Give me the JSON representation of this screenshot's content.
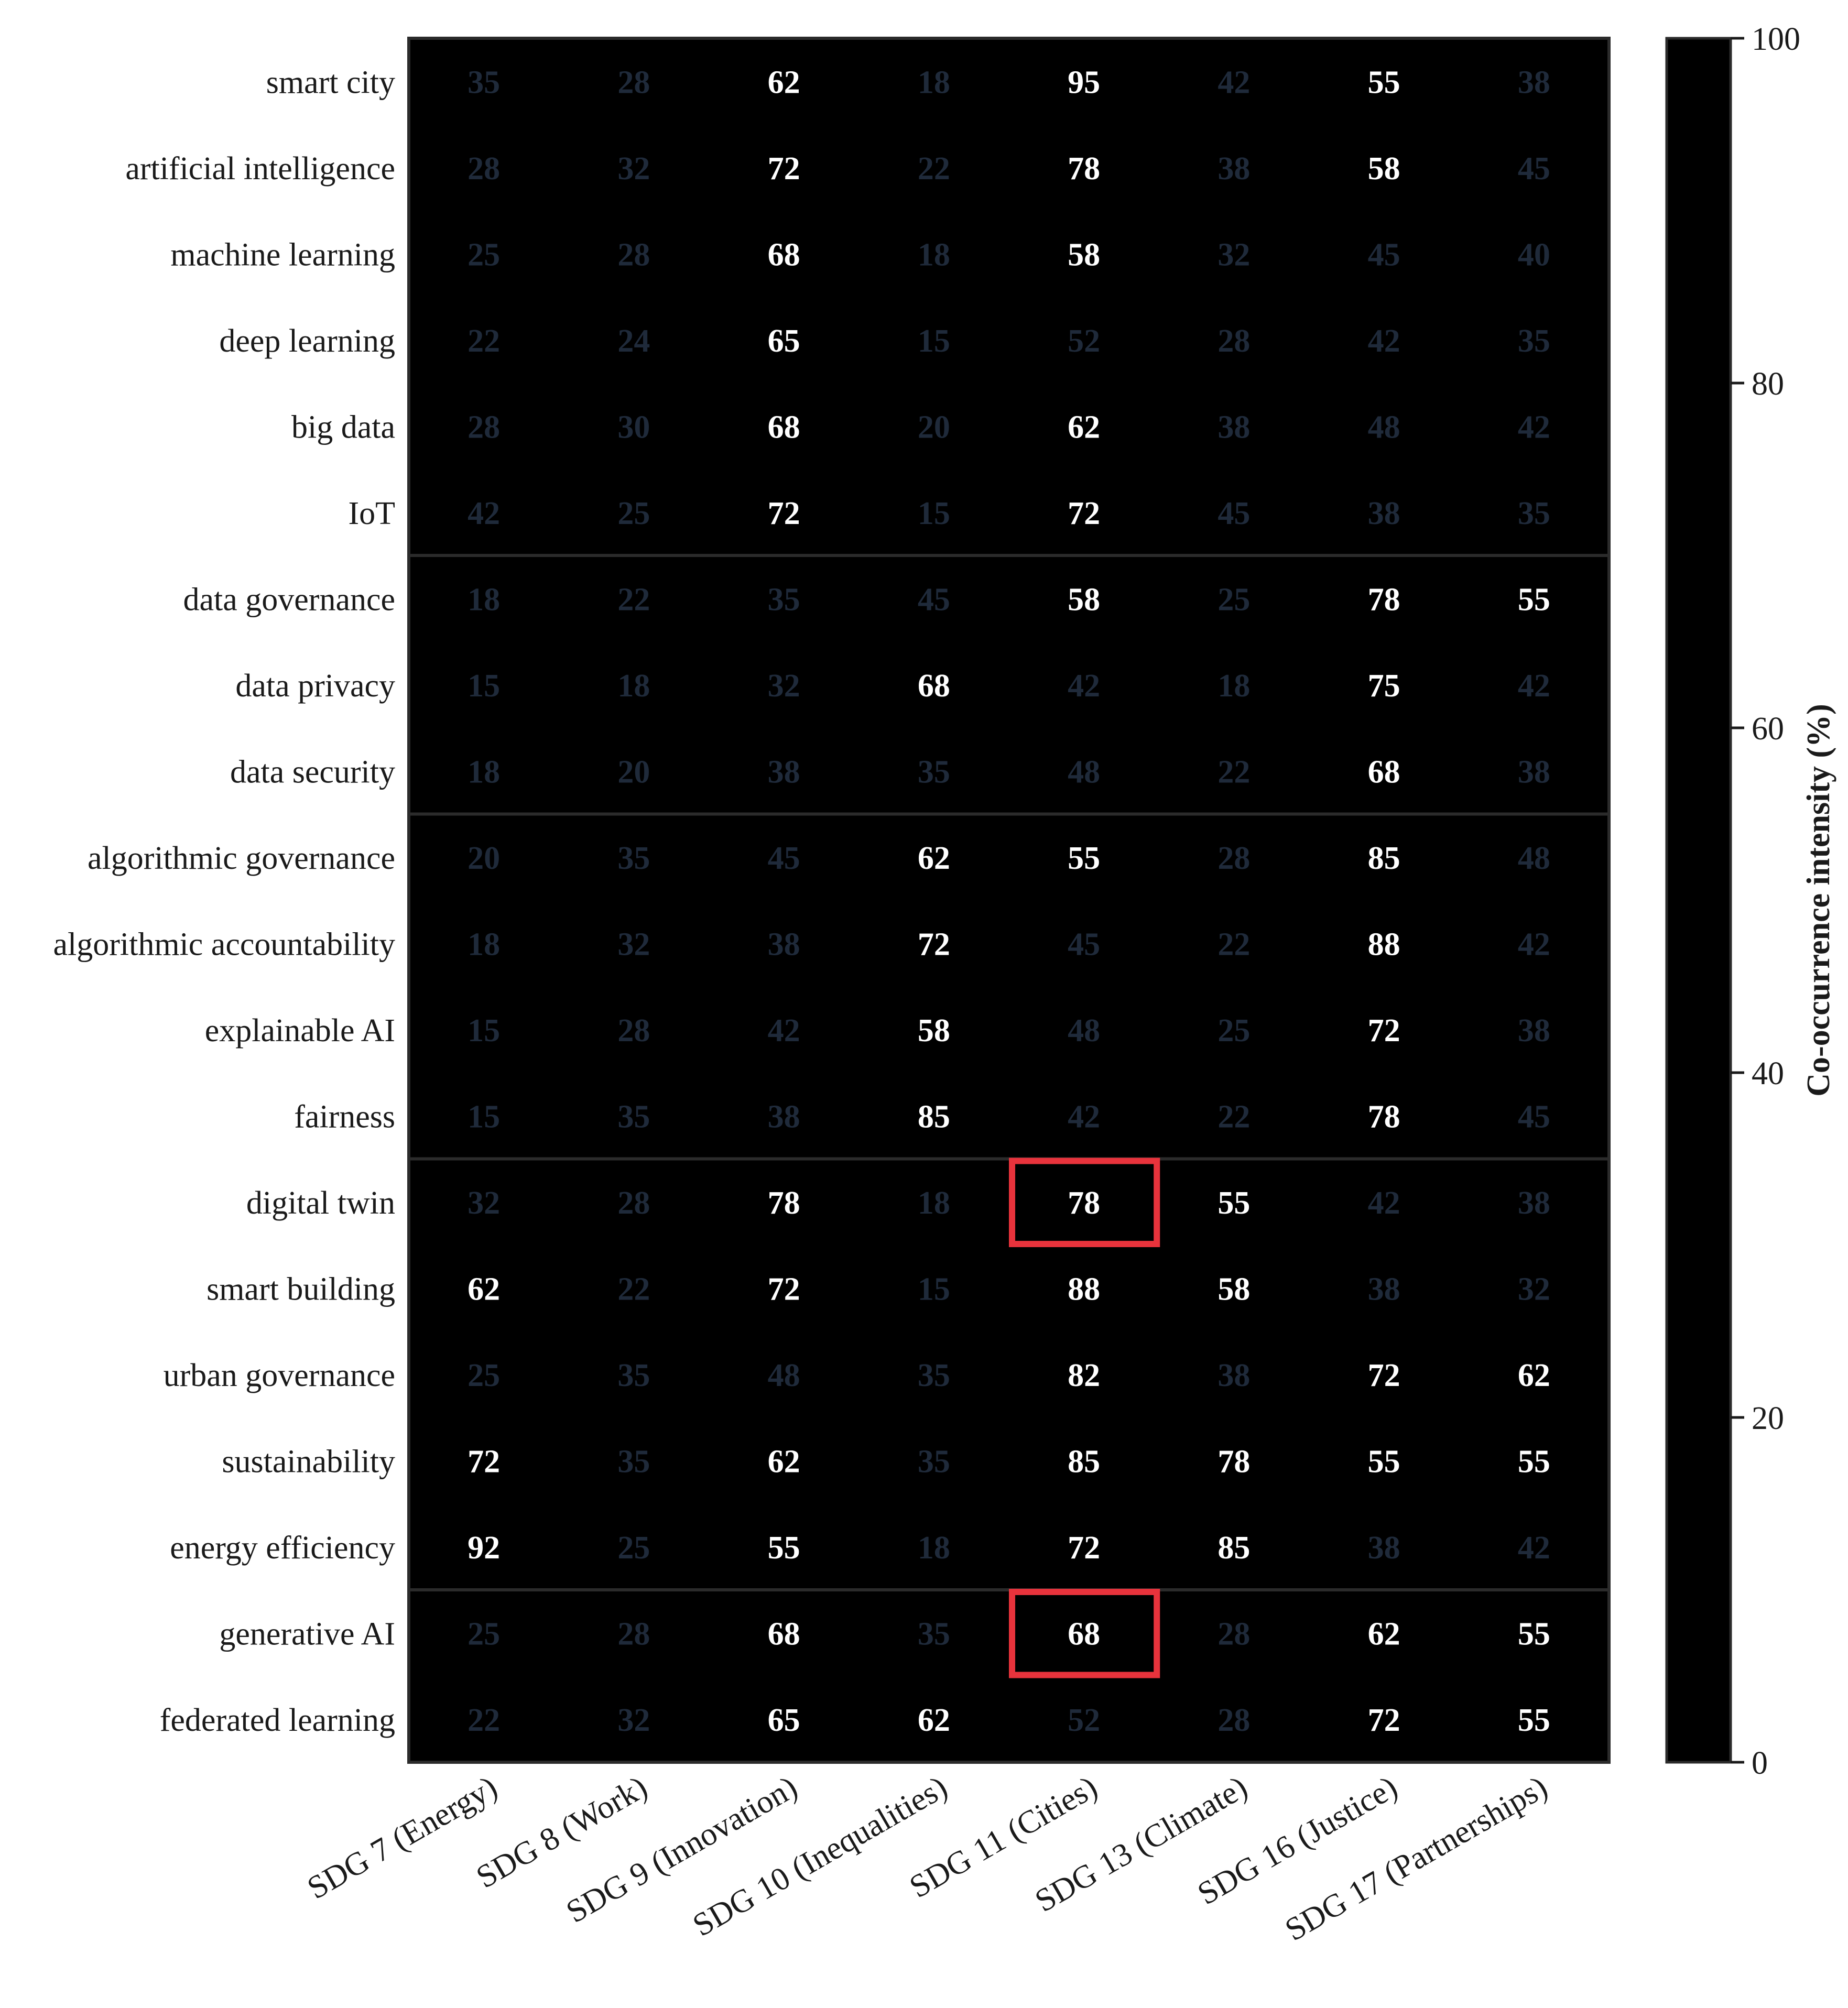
{
  "chart_data": {
    "type": "heatmap",
    "title": "",
    "xlabel": "",
    "ylabel": "",
    "rows": [
      "smart city",
      "artificial intelligence",
      "machine learning",
      "deep learning",
      "big data",
      "IoT",
      "data governance",
      "data privacy",
      "data security",
      "algorithmic governance",
      "algorithmic accountability",
      "explainable AI",
      "fairness",
      "digital twin",
      "smart building",
      "urban governance",
      "sustainability",
      "energy efficiency",
      "generative AI",
      "federated learning"
    ],
    "columns": [
      "SDG 7 (Energy)",
      "SDG 8 (Work)",
      "SDG 9 (Innovation)",
      "SDG 10 (Inequalities)",
      "SDG 11 (Cities)",
      "SDG 13 (Climate)",
      "SDG 16 (Justice)",
      "SDG 17 (Partnerships)"
    ],
    "values": [
      [
        35,
        28,
        62,
        18,
        95,
        42,
        55,
        38
      ],
      [
        28,
        32,
        72,
        22,
        78,
        38,
        58,
        45
      ],
      [
        25,
        28,
        68,
        18,
        58,
        32,
        45,
        40
      ],
      [
        22,
        24,
        65,
        15,
        52,
        28,
        42,
        35
      ],
      [
        28,
        30,
        68,
        20,
        62,
        38,
        48,
        42
      ],
      [
        42,
        25,
        72,
        15,
        72,
        45,
        38,
        35
      ],
      [
        18,
        22,
        35,
        45,
        58,
        25,
        78,
        55
      ],
      [
        15,
        18,
        32,
        68,
        42,
        18,
        75,
        42
      ],
      [
        18,
        20,
        38,
        35,
        48,
        22,
        68,
        38
      ],
      [
        20,
        35,
        45,
        62,
        55,
        28,
        85,
        48
      ],
      [
        18,
        32,
        38,
        72,
        45,
        22,
        88,
        42
      ],
      [
        15,
        28,
        42,
        58,
        48,
        25,
        72,
        38
      ],
      [
        15,
        35,
        38,
        85,
        42,
        22,
        78,
        45
      ],
      [
        32,
        28,
        78,
        18,
        78,
        55,
        42,
        38
      ],
      [
        62,
        22,
        72,
        15,
        88,
        58,
        38,
        32
      ],
      [
        25,
        35,
        48,
        35,
        82,
        38,
        72,
        62
      ],
      [
        72,
        35,
        62,
        35,
        85,
        78,
        55,
        55
      ],
      [
        92,
        25,
        55,
        18,
        72,
        85,
        38,
        42
      ],
      [
        25,
        28,
        68,
        35,
        68,
        28,
        62,
        55
      ],
      [
        22,
        32,
        65,
        62,
        52,
        28,
        72,
        55
      ]
    ],
    "row_group_boundaries_after": [
      5,
      8,
      12,
      17
    ],
    "highlighted_cells": [
      {
        "row": "digital twin",
        "column": "SDG 11 (Cities)"
      },
      {
        "row": "generative AI",
        "column": "SDG 11 (Cities)"
      }
    ],
    "colorbar": {
      "label": "Co-occurrence intensity (%)",
      "range": [
        0,
        100
      ],
      "ticks": [
        0,
        20,
        40,
        60,
        80,
        100
      ]
    },
    "colormap": "Blues",
    "colors": {
      "low": "#f7fbff",
      "high": "#08306b",
      "highlight": "#e8333c",
      "border": "#2b2b2b"
    },
    "grid": false
  }
}
